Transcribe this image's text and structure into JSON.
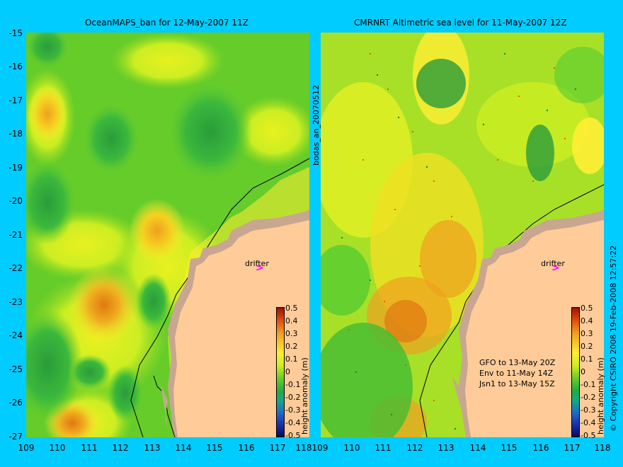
{
  "left_panel": {
    "title": "OceanMAPS_ban for 12-May-2007 11Z"
  },
  "right_panel": {
    "title": "CMRNRT Altimetric sea level  for 11-May-2007 12Z"
  },
  "lat_ticks": [
    "-15",
    "-16",
    "-17",
    "-18",
    "-19",
    "-20",
    "-21",
    "-22",
    "-23",
    "-24",
    "-25",
    "-26",
    "-27"
  ],
  "lon_ticks": [
    "109",
    "110",
    "111",
    "112",
    "113",
    "114",
    "115",
    "116",
    "117",
    "118"
  ],
  "drifter_label": "drifter",
  "colorbar": {
    "ticks": [
      "0.5",
      "0.4",
      "0.3",
      "0.2",
      "0.1",
      "0",
      "-0.1",
      "-0.2",
      "-0.3",
      "-0.4",
      "-0.5"
    ],
    "label": "height anomaly (m)"
  },
  "bodas_label": "bodas_an_20070512",
  "satellites": [
    "GFO to 13-May 20Z",
    "Env to 11-May 14Z",
    "Jsn1 to 13-May 15Z"
  ],
  "copyright": "© Copyright CSIRO 2008  19-Feb-2008 12:57:22",
  "colors": {
    "background": "#00ccff",
    "land": "#ffcc99",
    "coastal_fill": "#c8a690",
    "drifter_arrow": "#ff00ff"
  }
}
